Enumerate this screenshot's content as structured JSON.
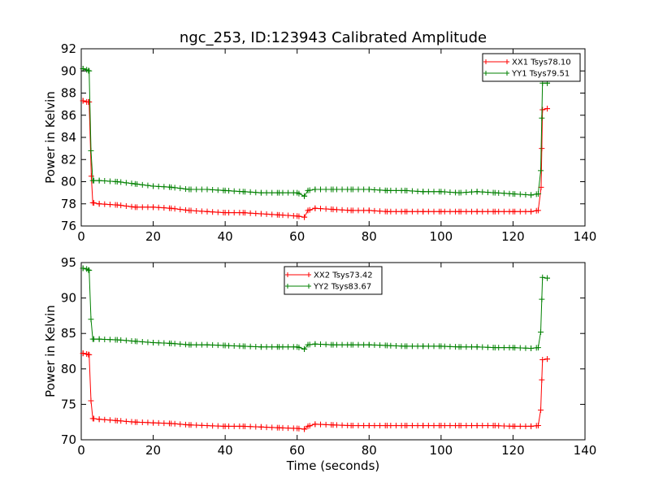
{
  "figure": {
    "title": "ngc_253, ID:123943 Calibrated Amplitude"
  },
  "chart_data": [
    {
      "type": "line",
      "title": "ngc_253, ID:123943 Calibrated Amplitude",
      "xlabel": "",
      "ylabel": "Power in Kelvin",
      "xlim": [
        0,
        140
      ],
      "ylim": [
        76,
        92
      ],
      "xticks": [
        "0",
        "20",
        "40",
        "60",
        "80",
        "100",
        "120",
        "140"
      ],
      "yticks": [
        "76",
        "78",
        "80",
        "82",
        "84",
        "86",
        "88",
        "90",
        "92"
      ],
      "legend_position": "top-right",
      "grid": false,
      "marker": "plus",
      "series": [
        {
          "name": "XX1 Tsys78.10",
          "color": "#ff0000",
          "points": [
            [
              0.5,
              87.3
            ],
            [
              1.5,
              87.2
            ],
            [
              2.2,
              87.2
            ],
            [
              2.8,
              80.5
            ],
            [
              3.2,
              78.1
            ],
            [
              5,
              78.0
            ],
            [
              10,
              77.9
            ],
            [
              15,
              77.7
            ],
            [
              20,
              77.7
            ],
            [
              25,
              77.6
            ],
            [
              30,
              77.4
            ],
            [
              35,
              77.3
            ],
            [
              40,
              77.2
            ],
            [
              45,
              77.2
            ],
            [
              50,
              77.1
            ],
            [
              55,
              77.0
            ],
            [
              60,
              76.9
            ],
            [
              62,
              76.8
            ],
            [
              63,
              77.4
            ],
            [
              65,
              77.6
            ],
            [
              70,
              77.5
            ],
            [
              75,
              77.4
            ],
            [
              80,
              77.4
            ],
            [
              85,
              77.3
            ],
            [
              90,
              77.3
            ],
            [
              95,
              77.3
            ],
            [
              100,
              77.3
            ],
            [
              105,
              77.3
            ],
            [
              110,
              77.3
            ],
            [
              115,
              77.3
            ],
            [
              120,
              77.3
            ],
            [
              125,
              77.3
            ],
            [
              127,
              77.4
            ],
            [
              127.8,
              79.5
            ],
            [
              128.2,
              86.5
            ],
            [
              129.5,
              86.6
            ]
          ]
        },
        {
          "name": "YY1 Tsys79.51",
          "color": "#008000",
          "points": [
            [
              0.5,
              90.2
            ],
            [
              1.5,
              90.1
            ],
            [
              2.2,
              90.0
            ],
            [
              2.7,
              82.8
            ],
            [
              3.2,
              80.1
            ],
            [
              5,
              80.1
            ],
            [
              10,
              80.0
            ],
            [
              15,
              79.8
            ],
            [
              20,
              79.6
            ],
            [
              25,
              79.5
            ],
            [
              30,
              79.3
            ],
            [
              35,
              79.3
            ],
            [
              40,
              79.2
            ],
            [
              45,
              79.1
            ],
            [
              50,
              79.0
            ],
            [
              55,
              79.0
            ],
            [
              60,
              79.0
            ],
            [
              62,
              78.7
            ],
            [
              63,
              79.2
            ],
            [
              65,
              79.3
            ],
            [
              70,
              79.3
            ],
            [
              75,
              79.3
            ],
            [
              80,
              79.3
            ],
            [
              85,
              79.2
            ],
            [
              90,
              79.2
            ],
            [
              95,
              79.1
            ],
            [
              100,
              79.1
            ],
            [
              105,
              79.0
            ],
            [
              110,
              79.1
            ],
            [
              115,
              79.0
            ],
            [
              120,
              78.9
            ],
            [
              125,
              78.8
            ],
            [
              127,
              78.9
            ],
            [
              127.7,
              81.0
            ],
            [
              128.2,
              88.9
            ],
            [
              129.5,
              88.9
            ]
          ]
        }
      ]
    },
    {
      "type": "line",
      "title": "",
      "xlabel": "Time (seconds)",
      "ylabel": "Power in Kelvin",
      "xlim": [
        0,
        140
      ],
      "ylim": [
        70,
        95
      ],
      "xticks": [
        "0",
        "20",
        "40",
        "60",
        "80",
        "100",
        "120",
        "140"
      ],
      "yticks": [
        "70",
        "75",
        "80",
        "85",
        "90",
        "95"
      ],
      "legend_position": "top-center",
      "grid": false,
      "marker": "plus",
      "series": [
        {
          "name": "XX2 Tsys73.42",
          "color": "#ff0000",
          "points": [
            [
              0.5,
              82.2
            ],
            [
              1.5,
              82.1
            ],
            [
              2.2,
              82.0
            ],
            [
              2.7,
              75.5
            ],
            [
              3.2,
              73.0
            ],
            [
              5,
              72.9
            ],
            [
              10,
              72.7
            ],
            [
              15,
              72.5
            ],
            [
              20,
              72.4
            ],
            [
              25,
              72.3
            ],
            [
              30,
              72.1
            ],
            [
              35,
              72.0
            ],
            [
              40,
              71.9
            ],
            [
              45,
              71.9
            ],
            [
              50,
              71.8
            ],
            [
              55,
              71.7
            ],
            [
              60,
              71.6
            ],
            [
              62,
              71.5
            ],
            [
              63,
              71.9
            ],
            [
              65,
              72.2
            ],
            [
              70,
              72.1
            ],
            [
              75,
              72.0
            ],
            [
              80,
              72.0
            ],
            [
              85,
              72.0
            ],
            [
              90,
              72.0
            ],
            [
              95,
              72.0
            ],
            [
              100,
              72.0
            ],
            [
              105,
              72.0
            ],
            [
              110,
              72.0
            ],
            [
              115,
              72.0
            ],
            [
              120,
              71.9
            ],
            [
              125,
              71.9
            ],
            [
              127,
              72.0
            ],
            [
              127.7,
              74.2
            ],
            [
              128.2,
              81.3
            ],
            [
              129.5,
              81.4
            ]
          ]
        },
        {
          "name": "YY2 Tsys83.67",
          "color": "#008000",
          "points": [
            [
              0.5,
              94.2
            ],
            [
              1.5,
              94.1
            ],
            [
              2.2,
              93.9
            ],
            [
              2.7,
              87.0
            ],
            [
              3.2,
              84.2
            ],
            [
              5,
              84.2
            ],
            [
              10,
              84.1
            ],
            [
              15,
              83.9
            ],
            [
              20,
              83.7
            ],
            [
              25,
              83.6
            ],
            [
              30,
              83.4
            ],
            [
              35,
              83.4
            ],
            [
              40,
              83.3
            ],
            [
              45,
              83.2
            ],
            [
              50,
              83.1
            ],
            [
              55,
              83.1
            ],
            [
              60,
              83.1
            ],
            [
              62,
              82.8
            ],
            [
              63,
              83.4
            ],
            [
              65,
              83.5
            ],
            [
              70,
              83.4
            ],
            [
              75,
              83.4
            ],
            [
              80,
              83.4
            ],
            [
              85,
              83.3
            ],
            [
              90,
              83.2
            ],
            [
              95,
              83.2
            ],
            [
              100,
              83.2
            ],
            [
              105,
              83.1
            ],
            [
              110,
              83.1
            ],
            [
              115,
              83.0
            ],
            [
              120,
              83.0
            ],
            [
              125,
              82.9
            ],
            [
              127,
              83.0
            ],
            [
              127.7,
              85.2
            ],
            [
              128.2,
              92.9
            ],
            [
              129.5,
              92.8
            ]
          ]
        }
      ]
    }
  ]
}
